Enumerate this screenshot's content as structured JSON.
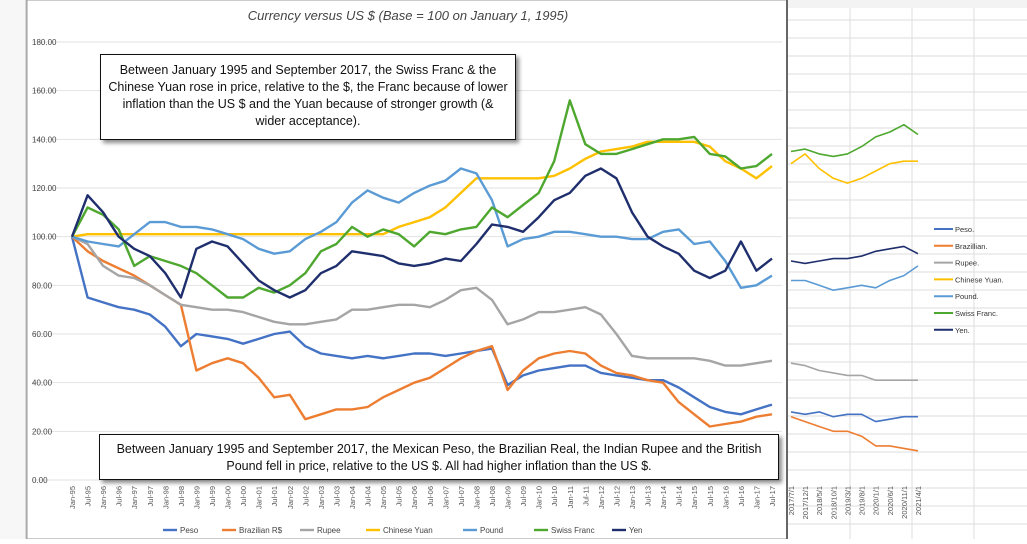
{
  "chart_data": [
    {
      "type": "line",
      "title": "Currency versus US $ (Base = 100 on January 1, 1995)",
      "ylim": [
        0,
        180
      ],
      "yticks": [
        "0.00",
        "20.00",
        "40.00",
        "60.00",
        "80.00",
        "100.00",
        "120.00",
        "140.00",
        "160.00",
        "180.00"
      ],
      "x": [
        "Jan-95",
        "Jul-95",
        "Jan-96",
        "Jul-96",
        "Jan-97",
        "Jul-97",
        "Jan-98",
        "Jul-98",
        "Jan-99",
        "Jul-99",
        "Jan-00",
        "Jul-00",
        "Jan-01",
        "Jul-01",
        "Jan-02",
        "Jul-02",
        "Jan-03",
        "Jul-03",
        "Jan-04",
        "Jul-04",
        "Jan-05",
        "Jul-05",
        "Jan-06",
        "Jul-06",
        "Jan-07",
        "Jul-07",
        "Jan-08",
        "Jul-08",
        "Jan-09",
        "Jul-09",
        "Jan-10",
        "Jul-10",
        "Jan-11",
        "Jul-11",
        "Jan-12",
        "Jul-12",
        "Jan-13",
        "Jul-13",
        "Jan-14",
        "Jul-14",
        "Jan-15",
        "Jul-15",
        "Jan-16",
        "Jul-16",
        "Jan-17",
        "Jul-17"
      ],
      "series": [
        {
          "name": "Peso",
          "color": "#4472c4",
          "values": [
            100,
            75,
            73,
            71,
            70,
            68,
            63,
            55,
            60,
            59,
            58,
            56,
            58,
            60,
            61,
            55,
            52,
            51,
            50,
            51,
            50,
            51,
            52,
            52,
            51,
            52,
            53,
            54,
            39,
            43,
            45,
            46,
            47,
            47,
            44,
            43,
            42,
            41,
            41,
            38,
            34,
            30,
            28,
            27,
            29,
            31
          ]
        },
        {
          "name": "Brazilian R$",
          "color": "#ed7d31",
          "values": [
            100,
            94,
            90,
            87,
            84,
            80,
            76,
            72,
            45,
            48,
            50,
            48,
            42,
            34,
            35,
            25,
            27,
            29,
            29,
            30,
            34,
            37,
            40,
            42,
            46,
            50,
            53,
            55,
            37,
            45,
            50,
            52,
            53,
            52,
            47,
            44,
            43,
            41,
            40,
            32,
            27,
            22,
            23,
            24,
            26,
            27
          ]
        },
        {
          "name": "Rupee",
          "color": "#a5a5a5",
          "values": [
            100,
            97,
            88,
            84,
            83,
            80,
            76,
            72,
            71,
            70,
            70,
            69,
            67,
            65,
            64,
            64,
            65,
            66,
            70,
            70,
            71,
            72,
            72,
            71,
            74,
            78,
            79,
            74,
            64,
            66,
            69,
            69,
            70,
            71,
            68,
            60,
            51,
            50,
            50,
            50,
            50,
            49,
            47,
            47,
            48,
            49
          ]
        },
        {
          "name": "Chinese Yuan",
          "color": "#ffc000",
          "values": [
            100,
            101,
            101,
            101,
            101,
            101,
            101,
            101,
            101,
            101,
            101,
            101,
            101,
            101,
            101,
            101,
            101,
            101,
            101,
            101,
            101,
            104,
            106,
            108,
            112,
            118,
            124,
            124,
            124,
            124,
            124,
            125,
            128,
            132,
            135,
            136,
            137,
            139,
            139,
            139,
            139,
            137,
            131,
            128,
            124,
            129
          ]
        },
        {
          "name": "Pound",
          "color": "#5b9bd5",
          "values": [
            100,
            98,
            97,
            96,
            101,
            106,
            106,
            104,
            104,
            103,
            101,
            99,
            95,
            93,
            94,
            99,
            102,
            106,
            114,
            119,
            116,
            114,
            118,
            121,
            123,
            128,
            126,
            115,
            96,
            99,
            100,
            102,
            102,
            101,
            100,
            100,
            99,
            99,
            102,
            103,
            97,
            98,
            90,
            79,
            80,
            84
          ]
        },
        {
          "name": "Swiss Franc",
          "color": "#4ea72e",
          "values": [
            100,
            112,
            109,
            103,
            88,
            92,
            90,
            88,
            85,
            80,
            75,
            75,
            79,
            77,
            80,
            85,
            94,
            97,
            104,
            100,
            103,
            101,
            96,
            102,
            101,
            103,
            104,
            112,
            108,
            113,
            118,
            131,
            156,
            138,
            134,
            134,
            136,
            138,
            140,
            140,
            141,
            134,
            133,
            128,
            129,
            134
          ]
        },
        {
          "name": "Yen",
          "color": "#1f2f6e",
          "values": [
            100,
            117,
            110,
            100,
            95,
            92,
            85,
            75,
            95,
            98,
            96,
            89,
            82,
            78,
            75,
            78,
            85,
            88,
            94,
            93,
            92,
            89,
            88,
            89,
            91,
            90,
            97,
            105,
            104,
            102,
            108,
            115,
            118,
            125,
            128,
            124,
            110,
            100,
            96,
            93,
            86,
            83,
            86,
            98,
            86,
            91
          ]
        }
      ]
    },
    {
      "type": "line",
      "x": [
        "2017/7/1",
        "2017/12/1",
        "2018/5/1",
        "2018/10/1",
        "2019/3/1",
        "2019/8/1",
        "2020/1/1",
        "2020/6/1",
        "2020/11/1",
        "2021/4/1"
      ],
      "series": [
        {
          "name": "Peso.",
          "color": "#4472c4",
          "values": [
            28,
            27,
            28,
            26,
            27,
            27,
            24,
            25,
            26,
            26
          ]
        },
        {
          "name": "Brazillian.",
          "color": "#ed7d31",
          "values": [
            26,
            24,
            22,
            20,
            20,
            18,
            14,
            14,
            13,
            12
          ]
        },
        {
          "name": "Rupee.",
          "color": "#a5a5a5",
          "values": [
            48,
            47,
            45,
            44,
            43,
            43,
            41,
            41,
            41,
            41
          ]
        },
        {
          "name": "Chinese Yuan.",
          "color": "#ffc000",
          "values": [
            130,
            134,
            128,
            124,
            122,
            124,
            127,
            130,
            131,
            131
          ]
        },
        {
          "name": "Pound.",
          "color": "#5b9bd5",
          "values": [
            82,
            82,
            80,
            78,
            79,
            80,
            79,
            82,
            84,
            88
          ]
        },
        {
          "name": "Swiss Franc.",
          "color": "#4ea72e",
          "values": [
            135,
            136,
            134,
            133,
            134,
            137,
            141,
            143,
            146,
            142
          ]
        },
        {
          "name": "Yen.",
          "color": "#1f2f6e",
          "values": [
            90,
            89,
            90,
            91,
            91,
            92,
            94,
            95,
            96,
            93
          ]
        }
      ]
    }
  ],
  "annotations": {
    "top": "Between January 1995 and September 2017, the Swiss Franc & the Chinese Yuan rose in price, relative to the $, the Franc because of lower inflation than the US $ and the Yuan because of stronger growth (& wider acceptance).",
    "bottom": "Between January 1995 and September 2017, the Mexican Peso, the Brazilian Real, the Indian Rupee and the British Pound fell in price, relative to the US $. All had higher inflation than the US $."
  }
}
